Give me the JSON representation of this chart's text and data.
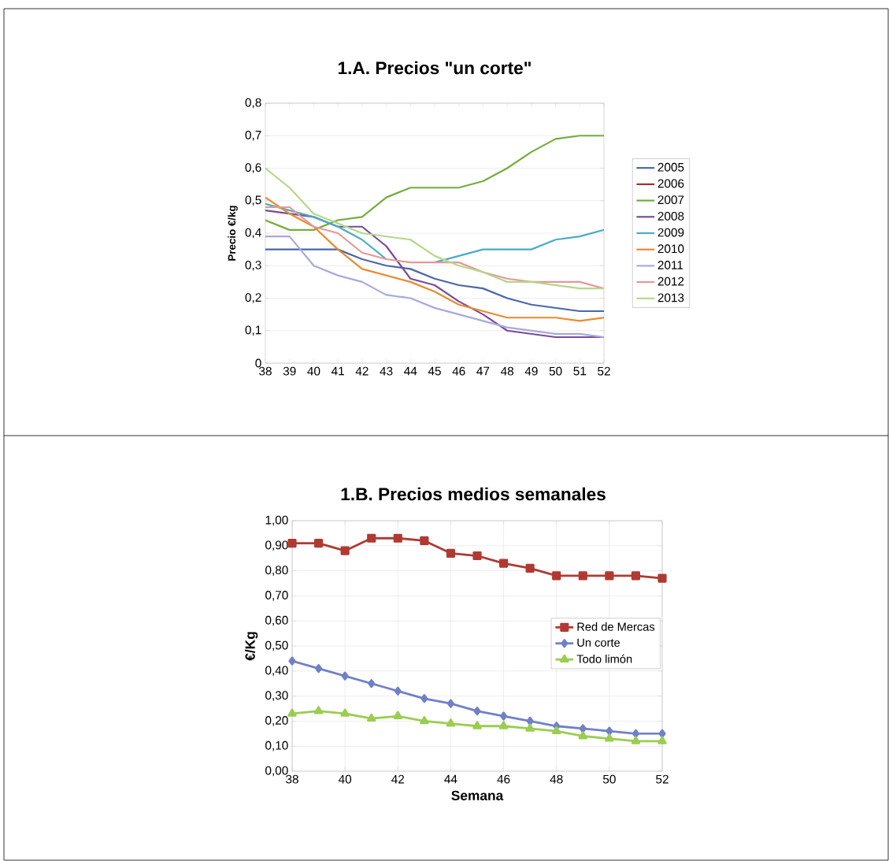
{
  "chart_data": [
    {
      "type": "line",
      "title": "1.A. Precios \"un corte\"",
      "ylabel": "Precio €/kg",
      "categories": [
        "38",
        "39",
        "40",
        "41",
        "42",
        "43",
        "44",
        "45",
        "46",
        "47",
        "48",
        "49",
        "50",
        "51",
        "52"
      ],
      "ylim": [
        0,
        0.8
      ],
      "yticks": [
        0,
        {
          "value": 0.1,
          "label": "0,1"
        },
        {
          "value": 0.2,
          "label": "0,2"
        },
        {
          "value": 0.3,
          "label": "0,3"
        },
        {
          "value": 0.4,
          "label": "0,4"
        },
        {
          "value": 0.5,
          "label": "0,5"
        },
        {
          "value": 0.6,
          "label": "0,6"
        },
        {
          "value": 0.7,
          "label": "0,7"
        },
        {
          "value": 0.8,
          "label": "0,8"
        }
      ],
      "grid": "y",
      "legend": "right",
      "marker": "none",
      "series": [
        {
          "name": "2005",
          "color": "#4a66ac",
          "values": [
            0.35,
            0.35,
            0.35,
            0.35,
            0.32,
            0.3,
            0.29,
            0.26,
            0.24,
            0.23,
            0.2,
            0.18,
            0.17,
            0.16,
            0.16
          ]
        },
        {
          "name": "2006",
          "color": "#a5302d",
          "values": [
            null,
            null,
            null,
            null,
            null,
            null,
            null,
            null,
            null,
            null,
            null,
            null,
            null,
            null,
            null
          ]
        },
        {
          "name": "2007",
          "color": "#74ad3c",
          "values": [
            0.44,
            0.41,
            0.41,
            0.44,
            0.45,
            0.51,
            0.54,
            0.54,
            0.54,
            0.56,
            0.6,
            0.65,
            0.69,
            0.7,
            0.7
          ]
        },
        {
          "name": "2008",
          "color": "#7a4a9a",
          "values": [
            0.47,
            0.46,
            0.45,
            0.42,
            0.42,
            0.36,
            0.26,
            0.24,
            0.19,
            0.15,
            0.1,
            0.09,
            0.08,
            0.08,
            0.08
          ]
        },
        {
          "name": "2009",
          "color": "#4aacc6",
          "values": [
            0.49,
            0.47,
            0.45,
            0.42,
            0.38,
            0.32,
            null,
            0.31,
            0.33,
            0.35,
            0.35,
            0.35,
            0.38,
            0.39,
            0.41
          ]
        },
        {
          "name": "2010",
          "color": "#e88b2e",
          "values": [
            0.51,
            0.46,
            0.42,
            0.35,
            0.29,
            0.27,
            0.25,
            0.22,
            0.18,
            0.16,
            0.14,
            0.14,
            0.14,
            0.13,
            0.14
          ]
        },
        {
          "name": "2011",
          "color": "#a9a9dc",
          "values": [
            0.39,
            0.39,
            0.3,
            0.27,
            0.25,
            0.21,
            0.2,
            0.17,
            0.15,
            0.13,
            0.11,
            0.1,
            0.09,
            0.09,
            0.08
          ]
        },
        {
          "name": "2012",
          "color": "#e59898",
          "values": [
            0.48,
            0.48,
            0.42,
            0.4,
            0.34,
            0.32,
            0.31,
            0.31,
            0.31,
            0.28,
            0.26,
            0.25,
            0.25,
            0.25,
            0.23
          ]
        },
        {
          "name": "2013",
          "color": "#b5d88a",
          "values": [
            0.6,
            0.54,
            0.46,
            0.43,
            0.4,
            0.39,
            0.38,
            0.33,
            0.3,
            0.28,
            0.25,
            0.25,
            0.24,
            0.23,
            0.23
          ]
        }
      ]
    },
    {
      "type": "line",
      "title": "1.B. Precios medios semanales",
      "xlabel": "Semana",
      "ylabel": "€/Kg",
      "x": [
        38,
        39,
        40,
        41,
        42,
        43,
        44,
        45,
        46,
        47,
        48,
        49,
        50,
        51,
        52
      ],
      "xlim": [
        38,
        52
      ],
      "xticks": [
        38,
        40,
        42,
        44,
        46,
        48,
        50,
        52
      ],
      "ylim": [
        0,
        1
      ],
      "yticks": [
        {
          "value": 0,
          "label": "0,00"
        },
        {
          "value": 0.1,
          "label": "0,10"
        },
        {
          "value": 0.2,
          "label": "0,20"
        },
        {
          "value": 0.3,
          "label": "0,30"
        },
        {
          "value": 0.4,
          "label": "0,40"
        },
        {
          "value": 0.5,
          "label": "0,50"
        },
        {
          "value": 0.6,
          "label": "0,60"
        },
        {
          "value": 0.7,
          "label": "0,70"
        },
        {
          "value": 0.8,
          "label": "0,80"
        },
        {
          "value": 0.9,
          "label": "0,90"
        },
        {
          "value": 1.0,
          "label": "1,00"
        }
      ],
      "grid": true,
      "legend": "right",
      "series": [
        {
          "name": "Red de Mercas",
          "color": "#b03a32",
          "marker": "square",
          "values": [
            0.91,
            0.91,
            0.88,
            0.93,
            0.93,
            0.92,
            0.87,
            0.86,
            0.83,
            0.81,
            0.78,
            0.78,
            0.78,
            0.78,
            0.77
          ]
        },
        {
          "name": "Un corte",
          "color": "#7080c8",
          "marker": "diamond",
          "values": [
            0.44,
            0.41,
            0.38,
            0.35,
            0.32,
            0.29,
            0.27,
            0.24,
            0.22,
            0.2,
            0.18,
            0.17,
            0.16,
            0.15,
            0.15
          ]
        },
        {
          "name": "Todo limón",
          "color": "#9acd50",
          "marker": "triangle",
          "values": [
            0.23,
            0.24,
            0.23,
            0.21,
            0.22,
            0.2,
            0.19,
            0.18,
            0.18,
            0.17,
            0.16,
            0.14,
            0.13,
            0.12,
            0.12
          ]
        }
      ]
    }
  ]
}
